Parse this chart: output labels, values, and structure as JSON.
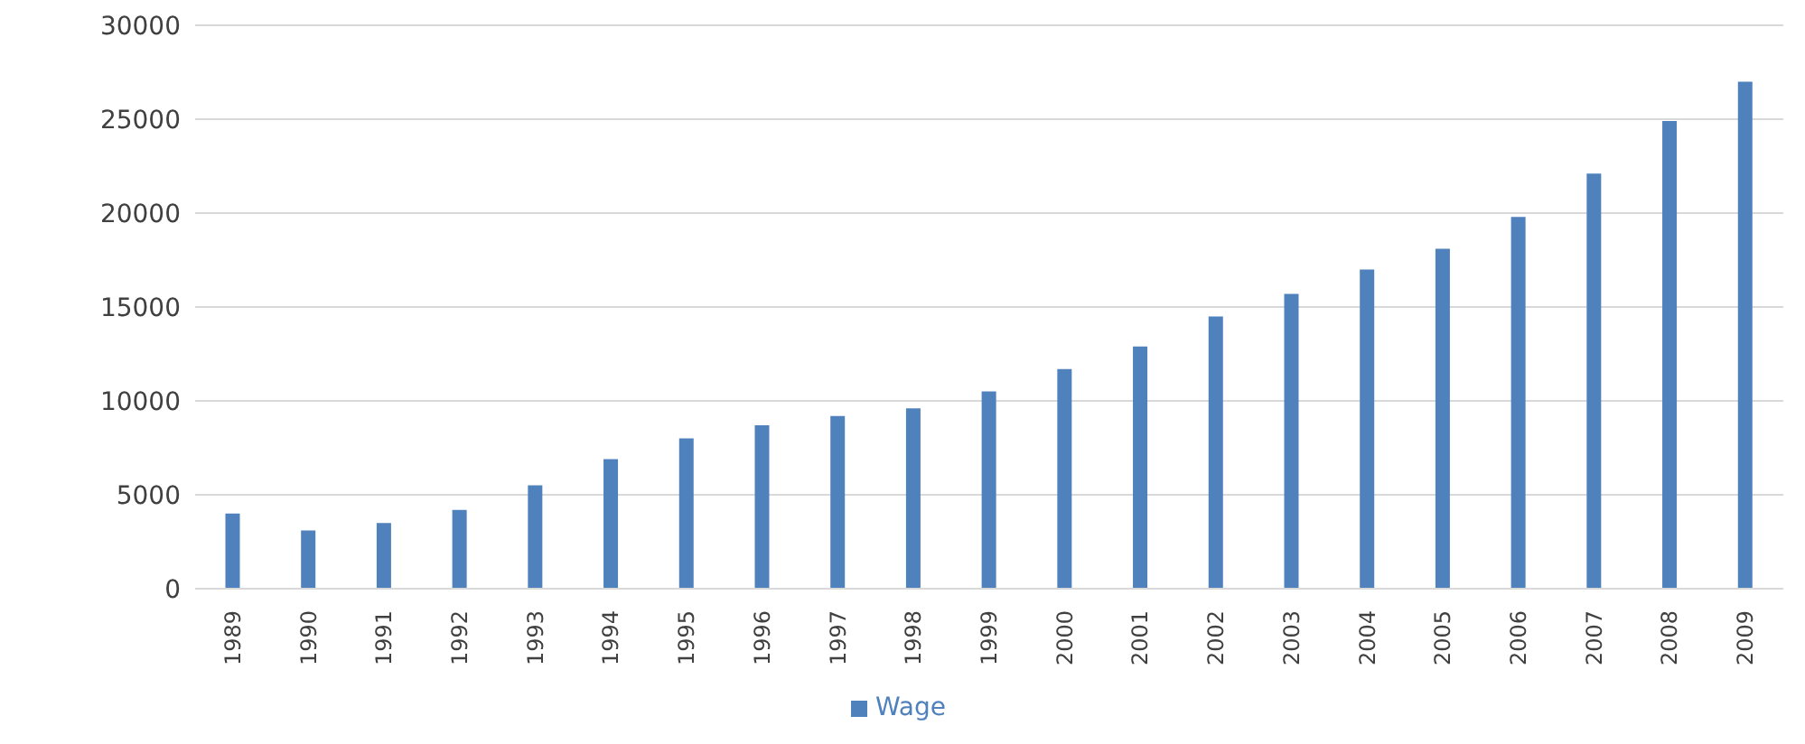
{
  "chart_data": {
    "type": "bar",
    "categories": [
      "1989",
      "1990",
      "1991",
      "1992",
      "1993",
      "1994",
      "1995",
      "1996",
      "1997",
      "1998",
      "1999",
      "2000",
      "2001",
      "2002",
      "2003",
      "2004",
      "2005",
      "2006",
      "2007",
      "2008",
      "2009"
    ],
    "series": [
      {
        "name": "Wage",
        "color": "#4f81bd",
        "values": [
          4000,
          3100,
          3500,
          4200,
          5500,
          6900,
          8000,
          8700,
          9200,
          9600,
          10500,
          11700,
          12900,
          14500,
          15700,
          17000,
          18100,
          19800,
          22100,
          24900,
          27000
        ]
      }
    ],
    "ylim": [
      0,
      30000
    ],
    "yticks": [
      0,
      5000,
      10000,
      15000,
      20000,
      25000,
      30000
    ],
    "grid": "y",
    "legend": "bottom"
  }
}
